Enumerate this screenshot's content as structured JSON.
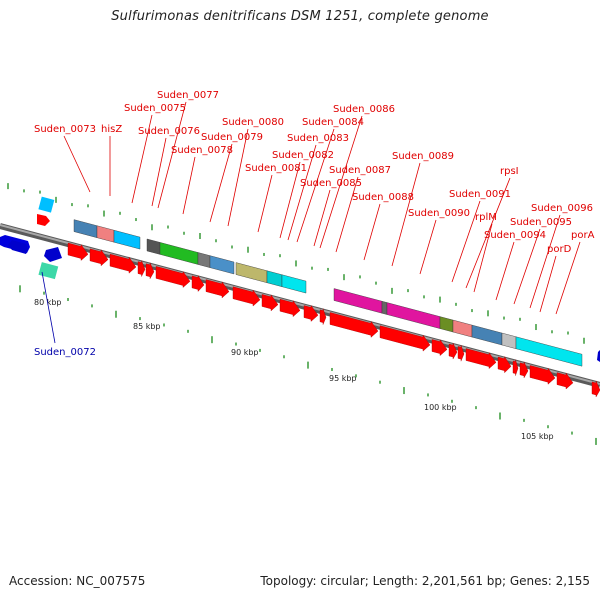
{
  "title": "Sulfurimonas denitrificans DSM 1251, complete genome",
  "footer": {
    "accession": "Accession: NC_007575",
    "topology": "Topology: circular; Length: 2,201,561 bp; Genes: 2,155"
  },
  "colors": {
    "label_red": "#e00000",
    "label_blue": "#0000aa",
    "cds_red": "#ff0000",
    "backbone": "#808080",
    "gc_green": "#006400"
  },
  "scale_ticks": [
    "80 kbp",
    "85 kbp",
    "90 kbp",
    "95 kbp",
    "100 kbp",
    "105 kbp"
  ],
  "gene_labels": [
    {
      "text": "Suden_0072",
      "color": "blue"
    },
    {
      "text": "Suden_0073",
      "color": "red"
    },
    {
      "text": "hisZ",
      "color": "red"
    },
    {
      "text": "Suden_0075",
      "color": "red"
    },
    {
      "text": "Suden_0076",
      "color": "red"
    },
    {
      "text": "Suden_0077",
      "color": "red"
    },
    {
      "text": "Suden_0078",
      "color": "red"
    },
    {
      "text": "Suden_0079",
      "color": "red"
    },
    {
      "text": "Suden_0080",
      "color": "red"
    },
    {
      "text": "Suden_0081",
      "color": "red"
    },
    {
      "text": "Suden_0082",
      "color": "red"
    },
    {
      "text": "Suden_0083",
      "color": "red"
    },
    {
      "text": "Suden_0084",
      "color": "red"
    },
    {
      "text": "Suden_0085",
      "color": "red"
    },
    {
      "text": "Suden_0086",
      "color": "red"
    },
    {
      "text": "Suden_0087",
      "color": "red"
    },
    {
      "text": "Suden_0088",
      "color": "red"
    },
    {
      "text": "Suden_0089",
      "color": "red"
    },
    {
      "text": "Suden_0090",
      "color": "red"
    },
    {
      "text": "Suden_0091",
      "color": "red"
    },
    {
      "text": "rpsI",
      "color": "red"
    },
    {
      "text": "rplM",
      "color": "red"
    },
    {
      "text": "Suden_0094",
      "color": "red"
    },
    {
      "text": "Suden_0095",
      "color": "red"
    },
    {
      "text": "Suden_0096",
      "color": "red"
    },
    {
      "text": "porD",
      "color": "red"
    },
    {
      "text": "porA",
      "color": "red"
    }
  ]
}
